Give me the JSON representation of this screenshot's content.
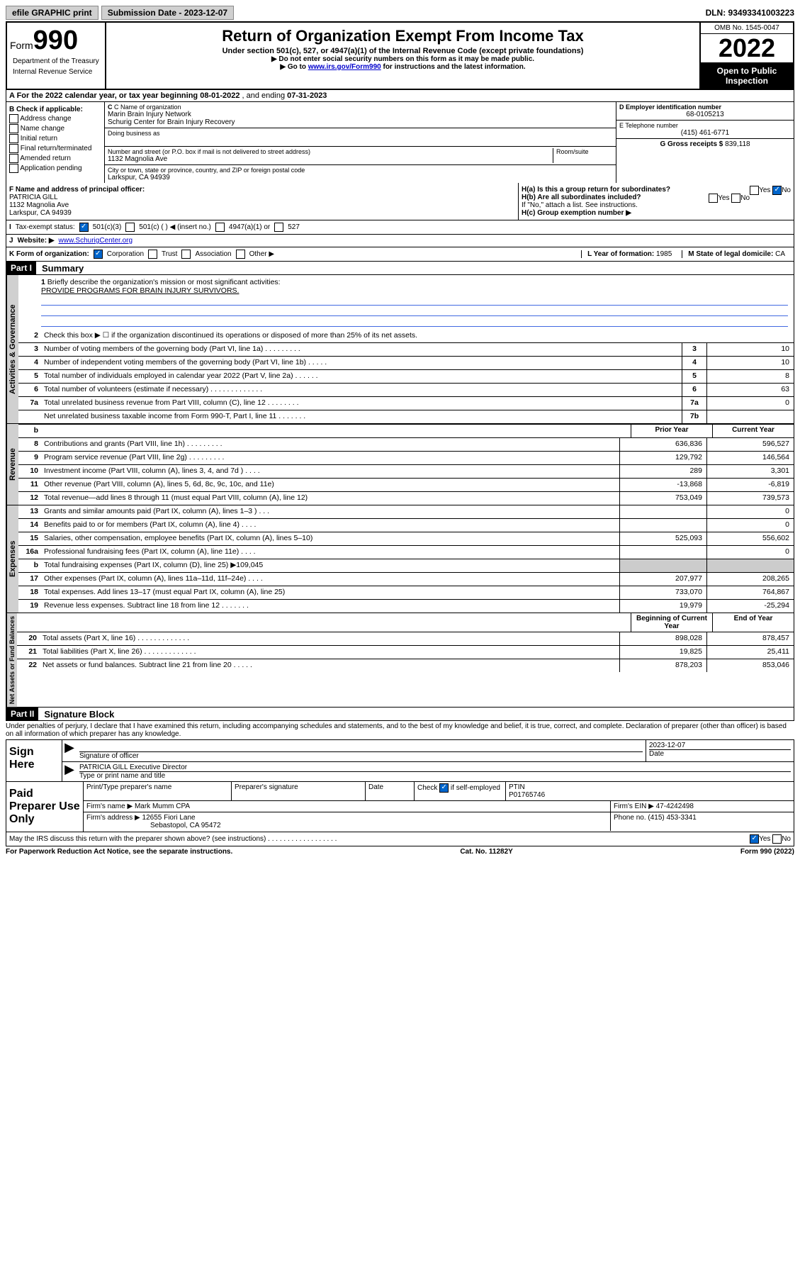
{
  "topbar": {
    "efile": "efile GRAPHIC print",
    "submission_label": "Submission Date - 2023-12-07",
    "dln": "DLN: 93493341003223"
  },
  "header": {
    "form_label": "Form",
    "form_number": "990",
    "title": "Return of Organization Exempt From Income Tax",
    "subtitle": "Under section 501(c), 527, or 4947(a)(1) of the Internal Revenue Code (except private foundations)",
    "note1": "▶ Do not enter social security numbers on this form as it may be made public.",
    "note2_pre": "▶ Go to ",
    "note2_link": "www.irs.gov/Form990",
    "note2_post": " for instructions and the latest information.",
    "omb": "OMB No. 1545-0047",
    "year": "2022",
    "open1": "Open to Public",
    "open2": "Inspection",
    "dept": "Department of the Treasury",
    "irs": "Internal Revenue Service"
  },
  "sectionA": {
    "text_pre": "A For the 2022 calendar year, or tax year beginning ",
    "begin": "08-01-2022",
    "mid": " , and ending ",
    "end": "07-31-2023"
  },
  "checkB": {
    "label": "B Check if applicable:",
    "items": [
      "Address change",
      "Name change",
      "Initial return",
      "Final return/terminated",
      "Amended return",
      "Application pending"
    ]
  },
  "orgC": {
    "name_label": "C Name of organization",
    "name1": "Marin Brain Injury Network",
    "name2": "Schurig Center for Brain Injury Recovery",
    "dba_label": "Doing business as",
    "addr_label": "Number and street (or P.O. box if mail is not delivered to street address)",
    "room_label": "Room/suite",
    "addr": "1132 Magnolia Ave",
    "city_label": "City or town, state or province, country, and ZIP or foreign postal code",
    "city": "Larkspur, CA  94939"
  },
  "boxD": {
    "label": "D Employer identification number",
    "value": "68-0105213"
  },
  "boxE": {
    "label": "E Telephone number",
    "value": "(415) 461-6771"
  },
  "boxG": {
    "label": "G Gross receipts $",
    "value": "839,118"
  },
  "boxF": {
    "label": "F Name and address of principal officer:",
    "name": "PATRICIA GILL",
    "addr1": "1132 Magnolia Ave",
    "addr2": "Larkspur, CA  94939"
  },
  "boxH": {
    "ha_label": "H(a)  Is this a group return for subordinates?",
    "hb_label": "H(b)  Are all subordinates included?",
    "hb_note": "If \"No,\" attach a list. See instructions.",
    "hc_label": "H(c)  Group exemption number ▶",
    "yes": "Yes",
    "no": "No"
  },
  "lineI": {
    "label": "Tax-exempt status:",
    "opts": [
      "501(c)(3)",
      "501(c) (  ) ◀ (insert no.)",
      "4947(a)(1) or",
      "527"
    ]
  },
  "lineJ": {
    "label": "Website: ▶",
    "value": "www.SchurigCenter.org"
  },
  "lineK": {
    "label": "K Form of organization:",
    "opts": [
      "Corporation",
      "Trust",
      "Association",
      "Other ▶"
    ]
  },
  "lineL": {
    "label": "L Year of formation:",
    "value": "1985"
  },
  "lineM": {
    "label": "M State of legal domicile:",
    "value": "CA"
  },
  "part1": {
    "label": "Part I",
    "title": "Summary",
    "q1_label": "1",
    "q1_text": "Briefly describe the organization's mission or most significant activities:",
    "q1_answer": "PROVIDE PROGRAMS FOR BRAIN INJURY SURVIVORS.",
    "q2_label": "2",
    "q2_text": "Check this box ▶ ☐  if the organization discontinued its operations or disposed of more than 25% of its net assets.",
    "lines_gov": [
      {
        "n": "3",
        "t": "Number of voting members of the governing body (Part VI, line 1a)  .    .    .    .    .    .    .    .    .",
        "b": "3",
        "v": "10"
      },
      {
        "n": "4",
        "t": "Number of independent voting members of the governing body (Part VI, line 1b)   .    .    .    .    .",
        "b": "4",
        "v": "10"
      },
      {
        "n": "5",
        "t": "Total number of individuals employed in calendar year 2022 (Part V, line 2a)   .    .    .    .    .    .",
        "b": "5",
        "v": "8"
      },
      {
        "n": "6",
        "t": "Total number of volunteers (estimate if necessary)   .    .    .    .    .    .    .    .    .    .    .    .    .",
        "b": "6",
        "v": "63"
      },
      {
        "n": "7a",
        "t": "Total unrelated business revenue from Part VIII, column (C), line 12   .    .    .    .    .    .    .    .",
        "b": "7a",
        "v": "0"
      },
      {
        "n": "",
        "t": "Net unrelated business taxable income from Form 990-T, Part I, line 11   .    .    .    .    .    .    .",
        "b": "7b",
        "v": ""
      }
    ],
    "col_prior": "Prior Year",
    "col_current": "Current Year",
    "lines_rev": [
      {
        "n": "8",
        "t": "Contributions and grants (Part VIII, line 1h)   .    .    .    .    .    .    .    .    .",
        "p": "636,836",
        "c": "596,527"
      },
      {
        "n": "9",
        "t": "Program service revenue (Part VIII, line 2g)   .    .    .    .    .    .    .    .    .",
        "p": "129,792",
        "c": "146,564"
      },
      {
        "n": "10",
        "t": "Investment income (Part VIII, column (A), lines 3, 4, and 7d )   .    .    .    .",
        "p": "289",
        "c": "3,301"
      },
      {
        "n": "11",
        "t": "Other revenue (Part VIII, column (A), lines 5, 6d, 8c, 9c, 10c, and 11e)",
        "p": "-13,868",
        "c": "-6,819"
      },
      {
        "n": "12",
        "t": "Total revenue—add lines 8 through 11 (must equal Part VIII, column (A), line 12)",
        "p": "753,049",
        "c": "739,573"
      }
    ],
    "lines_exp": [
      {
        "n": "13",
        "t": "Grants and similar amounts paid (Part IX, column (A), lines 1–3 )   .    .    .",
        "p": "",
        "c": "0"
      },
      {
        "n": "14",
        "t": "Benefits paid to or for members (Part IX, column (A), line 4)   .    .    .    .",
        "p": "",
        "c": "0"
      },
      {
        "n": "15",
        "t": "Salaries, other compensation, employee benefits (Part IX, column (A), lines 5–10)",
        "p": "525,093",
        "c": "556,602"
      },
      {
        "n": "16a",
        "t": "Professional fundraising fees (Part IX, column (A), line 11e)   .    .    .    .",
        "p": "",
        "c": "0"
      },
      {
        "n": "b",
        "t": "Total fundraising expenses (Part IX, column (D), line 25) ▶109,045",
        "p": "shade",
        "c": "shade"
      },
      {
        "n": "17",
        "t": "Other expenses (Part IX, column (A), lines 11a–11d, 11f–24e)   .    .    .    .",
        "p": "207,977",
        "c": "208,265"
      },
      {
        "n": "18",
        "t": "Total expenses. Add lines 13–17 (must equal Part IX, column (A), line 25)",
        "p": "733,070",
        "c": "764,867"
      },
      {
        "n": "19",
        "t": "Revenue less expenses. Subtract line 18 from line 12  .    .    .    .    .    .    .",
        "p": "19,979",
        "c": "-25,294"
      }
    ],
    "col_begin": "Beginning of Current Year",
    "col_end": "End of Year",
    "lines_net": [
      {
        "n": "20",
        "t": "Total assets (Part X, line 16)   .    .    .    .    .    .    .    .    .    .    .    .    .",
        "p": "898,028",
        "c": "878,457"
      },
      {
        "n": "21",
        "t": "Total liabilities (Part X, line 26)   .    .    .    .    .    .    .    .    .    .    .    .    .",
        "p": "19,825",
        "c": "25,411"
      },
      {
        "n": "22",
        "t": "Net assets or fund balances. Subtract line 21 from line 20  .    .    .    .    .",
        "p": "878,203",
        "c": "853,046"
      }
    ],
    "tab_gov": "Activities & Governance",
    "tab_rev": "Revenue",
    "tab_exp": "Expenses",
    "tab_net": "Net Assets or Fund Balances"
  },
  "part2": {
    "label": "Part II",
    "title": "Signature Block",
    "penalty": "Under penalties of perjury, I declare that I have examined this return, including accompanying schedules and statements, and to the best of my knowledge and belief, it is true, correct, and complete. Declaration of preparer (other than officer) is based on all information of which preparer has any knowledge.",
    "sign_here": "Sign Here",
    "sig_officer": "Signature of officer",
    "sig_date": "2023-12-07",
    "date_label": "Date",
    "officer_name": "PATRICIA GILL  Executive Director",
    "type_label": "Type or print name and title",
    "paid": "Paid Preparer Use Only",
    "prep_name_label": "Print/Type preparer's name",
    "prep_sig_label": "Preparer's signature",
    "check_if": "Check",
    "self_emp": "if self-employed",
    "ptin_label": "PTIN",
    "ptin": "P01765746",
    "firm_name_label": "Firm's name   ▶",
    "firm_name": "Mark Mumm CPA",
    "firm_ein_label": "Firm's EIN ▶",
    "firm_ein": "47-4242498",
    "firm_addr_label": "Firm's address ▶",
    "firm_addr1": "12655 Fiori Lane",
    "firm_addr2": "Sebastopol, CA  95472",
    "phone_label": "Phone no.",
    "phone": "(415) 453-3341",
    "may_irs": "May the IRS discuss this return with the preparer shown above? (see instructions)   .    .    .    .    .    .    .    .    .    .    .    .    .    .    .    .    .    ."
  },
  "footer": {
    "paperwork": "For Paperwork Reduction Act Notice, see the separate instructions.",
    "cat": "Cat. No. 11282Y",
    "form": "Form 990 (2022)"
  }
}
